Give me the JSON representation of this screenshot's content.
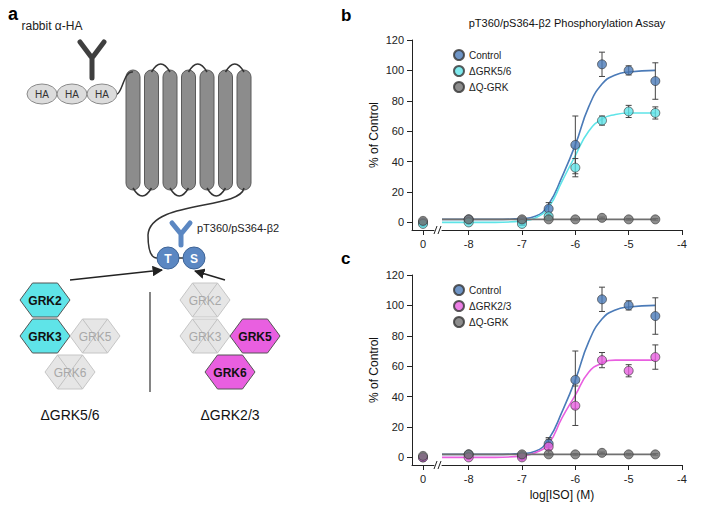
{
  "diagram": {
    "letter": "a",
    "antibody_label": "rabbit α-HA",
    "tags": [
      "HA",
      "HA",
      "HA"
    ],
    "phospho_label": "pT360/pS364-β2",
    "residues": [
      "T",
      "S"
    ],
    "residue_color": "#5b87c2",
    "kinases": [
      "GRK2",
      "GRK3",
      "GRK5",
      "GRK6"
    ],
    "groups": [
      {
        "name": "ΔGRK5/6",
        "active": [
          "GRK2",
          "GRK3"
        ],
        "color": "#5fe4e8"
      },
      {
        "name": "ΔGRK2/3",
        "active": [
          "GRK5",
          "GRK6"
        ],
        "color": "#e95fe0"
      }
    ]
  },
  "chart_data": [
    {
      "type": "scatter",
      "letter": "b",
      "title": "pT360/pS364-β2 Phosphorylation Assay",
      "y_label": "% of Control",
      "xlim": [
        -8.5,
        -4
      ],
      "xticks": [
        -8,
        -7,
        -6,
        -5,
        -4
      ],
      "vehicle_xlim": [
        -0.5,
        0.5
      ],
      "vehicle_xticks": [
        0
      ],
      "ylim": [
        -5,
        120
      ],
      "yticks": [
        0,
        20,
        40,
        60,
        80,
        100,
        120
      ],
      "grid": false,
      "legend": "upper left",
      "series": [
        {
          "name": "Control",
          "color": "#4b7bb8",
          "marker": "circle",
          "vehicle": {
            "x": 0,
            "value": 0,
            "error": 1
          },
          "x": [
            -8,
            -7,
            -6.5,
            -6,
            -5.5,
            -5,
            -4.5
          ],
          "values": [
            2,
            1,
            9,
            51,
            104,
            100,
            93
          ],
          "errors": [
            1,
            1,
            4,
            19,
            8,
            3,
            12
          ],
          "fit": {
            "x": [
              -8.5,
              -7.5,
              -7,
              -6.75,
              -6.5,
              -6.25,
              -6,
              -5.75,
              -5.5,
              -5.25,
              -5,
              -4.5
            ],
            "values": [
              2,
              2,
              2.5,
              4,
              12,
              30,
              51,
              76,
              91,
              97,
              99,
              100
            ]
          }
        },
        {
          "name": "ΔGRK5/6",
          "color": "#5fe4e8",
          "marker": "circle",
          "vehicle": {
            "x": 0,
            "value": -1,
            "error": 1
          },
          "x": [
            -8,
            -7,
            -6.5,
            -6,
            -5.5,
            -5,
            -4.5
          ],
          "values": [
            0,
            -1,
            4,
            36,
            67,
            73,
            72
          ],
          "errors": [
            1,
            1,
            2,
            6,
            3,
            4,
            4
          ],
          "fit": {
            "x": [
              -8.5,
              -7.5,
              -7,
              -6.75,
              -6.5,
              -6.25,
              -6,
              -5.75,
              -5.5,
              -5.25,
              -5,
              -4.5
            ],
            "values": [
              0,
              0,
              1,
              3,
              10,
              27,
              44,
              60,
              68,
              71,
              72,
              72
            ]
          }
        },
        {
          "name": "ΔQ-GRK",
          "color": "#707070",
          "marker": "circle",
          "vehicle": {
            "x": 0,
            "value": 1,
            "error": 0.5
          },
          "x": [
            -8,
            -7,
            -6.5,
            -6,
            -5.5,
            -5,
            -4.5
          ],
          "values": [
            2,
            2,
            2,
            2,
            3,
            2,
            2
          ],
          "errors": [
            0.5,
            0.5,
            0.5,
            0.5,
            0.5,
            0.5,
            0.5
          ],
          "fit": {
            "x": [
              -8.5,
              -4.5
            ],
            "values": [
              2,
              2
            ]
          }
        }
      ]
    },
    {
      "type": "scatter",
      "letter": "c",
      "x_label": "log[ISO] (M)",
      "y_label": "% of Control",
      "xlim": [
        -8.5,
        -4
      ],
      "xticks": [
        -8,
        -7,
        -6,
        -5,
        -4
      ],
      "vehicle_xlim": [
        -0.5,
        0.5
      ],
      "vehicle_xticks": [
        0
      ],
      "ylim": [
        -5,
        120
      ],
      "yticks": [
        0,
        20,
        40,
        60,
        80,
        100,
        120
      ],
      "grid": false,
      "legend": "upper left",
      "series": [
        {
          "name": "Control",
          "color": "#4b7bb8",
          "marker": "circle",
          "vehicle": {
            "x": 0,
            "value": 0,
            "error": 1
          },
          "x": [
            -8,
            -7,
            -6.5,
            -6,
            -5.5,
            -5,
            -4.5
          ],
          "values": [
            2,
            1,
            9,
            51,
            104,
            100,
            93
          ],
          "errors": [
            1,
            1,
            4,
            19,
            8,
            3,
            12
          ],
          "fit": {
            "x": [
              -8.5,
              -7.5,
              -7,
              -6.75,
              -6.5,
              -6.25,
              -6,
              -5.75,
              -5.5,
              -5.25,
              -5,
              -4.5
            ],
            "values": [
              2,
              2,
              2.5,
              4,
              12,
              30,
              51,
              76,
              91,
              97,
              99,
              100
            ]
          }
        },
        {
          "name": "ΔGRK2/3",
          "color": "#e95fe0",
          "marker": "circle",
          "vehicle": {
            "x": 0,
            "value": 0,
            "error": 1
          },
          "x": [
            -8,
            -7,
            -6.5,
            -6,
            -5.5,
            -5,
            -4.5
          ],
          "values": [
            0,
            0,
            7,
            34,
            64,
            57,
            66
          ],
          "errors": [
            1,
            1,
            5,
            13,
            5,
            4,
            8
          ],
          "fit": {
            "x": [
              -8.5,
              -7.5,
              -7,
              -6.75,
              -6.5,
              -6.25,
              -6,
              -5.75,
              -5.5,
              -5.25,
              -5,
              -4.5
            ],
            "values": [
              0,
              0,
              1,
              3,
              9,
              26,
              41,
              56,
              62,
              64,
              64,
              64
            ]
          }
        },
        {
          "name": "ΔQ-GRK",
          "color": "#707070",
          "marker": "circle",
          "vehicle": {
            "x": 0,
            "value": 1,
            "error": 0.5
          },
          "x": [
            -8,
            -7,
            -6.5,
            -6,
            -5.5,
            -5,
            -4.5
          ],
          "values": [
            2,
            2,
            2,
            2,
            3,
            2,
            2
          ],
          "errors": [
            0.5,
            0.5,
            0.5,
            0.5,
            0.5,
            0.5,
            0.5
          ],
          "fit": {
            "x": [
              -8.5,
              -4.5
            ],
            "values": [
              2,
              2
            ]
          }
        }
      ]
    }
  ]
}
